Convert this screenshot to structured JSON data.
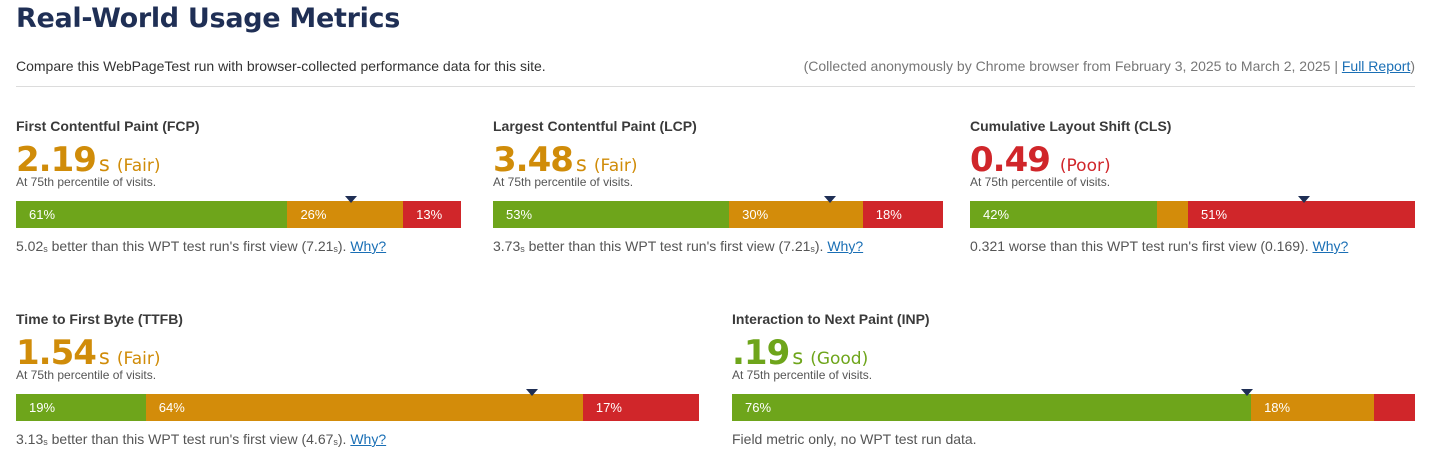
{
  "title": "Real-World Usage Metrics",
  "intro": {
    "description": "Compare this WebPageTest run with browser-collected performance data for this site.",
    "collected_note": "(Collected anonymously by Chrome browser from February 3, 2025 to March 2, 2025",
    "separator": " | ",
    "full_report_label": "Full Report",
    "close_paren": ")"
  },
  "colors": {
    "good": "#6ea51b",
    "fair": "#d38c0a",
    "poor": "#d0262a",
    "marker": "#1f2f55",
    "title": "#1f2f55"
  },
  "metrics": {
    "fcp": {
      "label": "First Contentful Paint (FCP)",
      "value": "2.19",
      "unit": "s",
      "rating": "(Fair)",
      "percentile_note": "At 75th percentile of visits.",
      "distribution": {
        "good": 61,
        "fair": 26,
        "poor": 13
      },
      "good_label": "61%",
      "fair_label": "26%",
      "poor_label": "13%",
      "marker_fraction": 0.753,
      "comparison": {
        "num": "5.02",
        "unit": "s",
        "text": " better than this WPT test run's first view (",
        "ref_num": "7.21",
        "ref_unit": "s",
        "close": ").",
        "why": "Why?"
      }
    },
    "lcp": {
      "label": "Largest Contentful Paint (LCP)",
      "value": "3.48",
      "unit": "s",
      "rating": "(Fair)",
      "percentile_note": "At 75th percentile of visits.",
      "distribution": {
        "good": 53,
        "fair": 30,
        "poor": 18
      },
      "good_label": "53%",
      "fair_label": "30%",
      "poor_label": "18%",
      "marker_fraction": 0.748,
      "comparison": {
        "num": "3.73",
        "unit": "s",
        "text": " better than this WPT test run's first view (",
        "ref_num": "7.21",
        "ref_unit": "s",
        "close": ").",
        "why": "Why?"
      }
    },
    "cls": {
      "label": "Cumulative Layout Shift (CLS)",
      "value": "0.49",
      "unit": "",
      "rating": "(Poor)",
      "percentile_note": "At 75th percentile of visits.",
      "distribution": {
        "good": 42,
        "fair": 7,
        "poor": 51
      },
      "good_label": "42%",
      "fair_label": "",
      "poor_label": "51%",
      "marker_fraction": 0.75,
      "comparison": {
        "num": "0.321",
        "unit": "",
        "text": " worse than this WPT test run's first view (",
        "ref_num": "0.169",
        "ref_unit": "",
        "close": ").",
        "why": "Why?"
      }
    },
    "ttfb": {
      "label": "Time to First Byte (TTFB)",
      "value": "1.54",
      "unit": "s",
      "rating": "(Fair)",
      "percentile_note": "At 75th percentile of visits.",
      "distribution": {
        "good": 19,
        "fair": 64,
        "poor": 17
      },
      "good_label": "19%",
      "fair_label": "64%",
      "poor_label": "17%",
      "marker_fraction": 0.755,
      "comparison": {
        "num": "3.13",
        "unit": "s",
        "text": " better than this WPT test run's first view (",
        "ref_num": "4.67",
        "ref_unit": "s",
        "close": ").",
        "why": "Why?"
      }
    },
    "inp": {
      "label": "Interaction to Next Paint (INP)",
      "value": ".19",
      "unit": "s",
      "rating": "(Good)",
      "percentile_note": "At 75th percentile of visits.",
      "distribution": {
        "good": 76,
        "fair": 18,
        "poor": 6
      },
      "good_label": "76%",
      "fair_label": "18%",
      "poor_label": "",
      "marker_fraction": 0.754,
      "field_only_note": "Field metric only, no WPT test run data."
    }
  }
}
